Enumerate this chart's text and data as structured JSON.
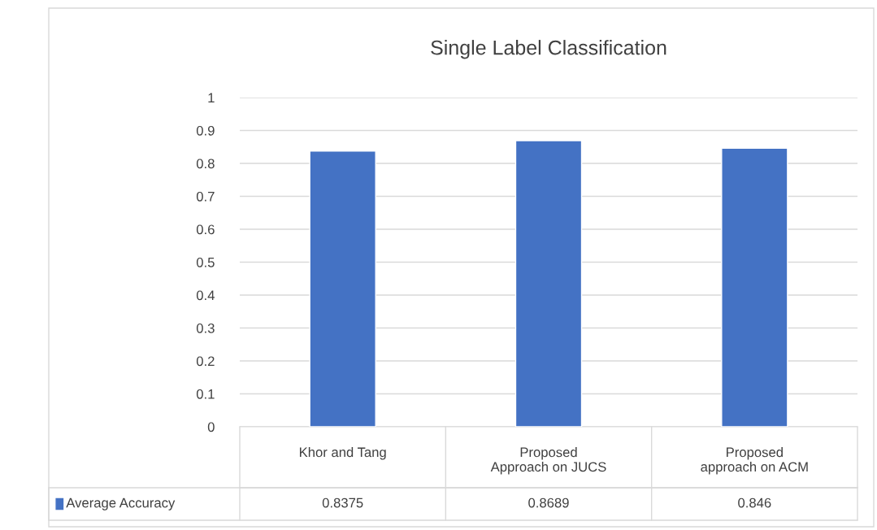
{
  "chart_data": {
    "type": "bar",
    "title": "Single Label Classification",
    "categories": [
      "Khor and Tang",
      "Proposed Approach on JUCS",
      "Proposed approach on ACM"
    ],
    "series": [
      {
        "name": "Average Accuracy",
        "color": "#4472c4",
        "values": [
          0.8375,
          0.8689,
          0.846
        ]
      }
    ],
    "ylim": [
      0,
      1
    ],
    "yticks": [
      0,
      0.1,
      0.2,
      0.3,
      0.4,
      0.5,
      0.6,
      0.7,
      0.8,
      0.9,
      1
    ],
    "grid": "y",
    "data_labels": true,
    "legend": "bottom"
  }
}
